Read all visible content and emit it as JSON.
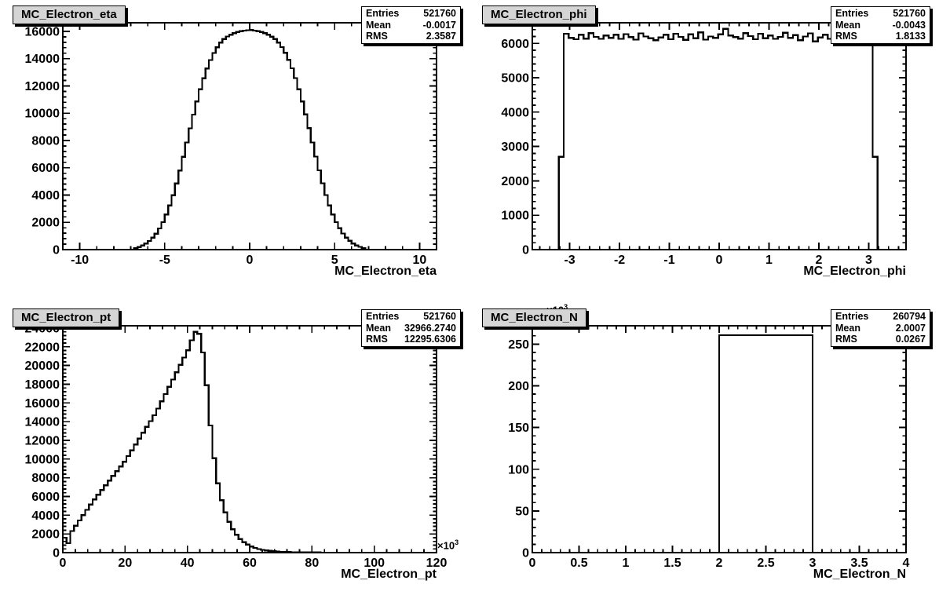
{
  "chart_data": [
    {
      "type": "histogram",
      "title": "MC_Electron_eta",
      "xlabel": "MC_Electron_eta",
      "x_range": [
        -11,
        11
      ],
      "y_range": [
        0,
        16630
      ],
      "x_ticks": [
        -10,
        -5,
        0,
        5,
        10
      ],
      "x_minor_step": 1,
      "y_ticks": [
        0,
        2000,
        4000,
        6000,
        8000,
        10000,
        12000,
        14000,
        16000
      ],
      "y_minor_step": 400,
      "stats": [
        {
          "label": "Entries",
          "value": "521760"
        },
        {
          "label": "Mean",
          "value": "-0.0017"
        },
        {
          "label": "RMS",
          "value": "2.3587"
        }
      ],
      "bins": {
        "x_first": -6.8,
        "bin_width": 0.2,
        "values": [
          110,
          190,
          300,
          440,
          630,
          870,
          1170,
          1550,
          2010,
          2570,
          3230,
          3990,
          4850,
          5800,
          6810,
          7850,
          8890,
          9900,
          10860,
          11750,
          12560,
          13280,
          13900,
          14420,
          14840,
          15170,
          15430,
          15620,
          15760,
          15870,
          15960,
          16010,
          16050,
          16080,
          16090,
          16060,
          16010,
          15950,
          15860,
          15750,
          15610,
          15430,
          15180,
          14850,
          14430,
          13910,
          13290,
          12570,
          11760,
          10870,
          9910,
          8900,
          7860,
          6820,
          5810,
          4860,
          4000,
          3240,
          2580,
          2020,
          1560,
          1180,
          880,
          640,
          450,
          310,
          200,
          120
        ]
      }
    },
    {
      "type": "histogram",
      "title": "MC_Electron_phi",
      "xlabel": "MC_Electron_phi",
      "x_range": [
        -3.75,
        3.75
      ],
      "y_range": [
        0,
        6600
      ],
      "x_ticks": [
        -3,
        -2,
        -1,
        0,
        1,
        2,
        3
      ],
      "x_minor_step": 0.2,
      "y_ticks": [
        0,
        1000,
        2000,
        3000,
        4000,
        5000,
        6000
      ],
      "y_minor_step": 200,
      "stats": [
        {
          "label": "Entries",
          "value": "521760"
        },
        {
          "label": "Mean",
          "value": "-0.0043"
        },
        {
          "label": "RMS",
          "value": "1.8133"
        }
      ],
      "bins": {
        "x_first": -3.22,
        "bin_width": 0.1,
        "values": [
          2700,
          6280,
          6160,
          6120,
          6250,
          6140,
          6300,
          6190,
          6130,
          6230,
          6160,
          6250,
          6130,
          6270,
          6180,
          6110,
          6290,
          6200,
          6150,
          6090,
          6170,
          6250,
          6120,
          6280,
          6190,
          6100,
          6260,
          6150,
          6320,
          6110,
          6200,
          6160,
          6260,
          6420,
          6230,
          6180,
          6140,
          6300,
          6210,
          6120,
          6280,
          6150,
          6230,
          6130,
          6190,
          6310,
          6160,
          6240,
          6090,
          6200,
          6290,
          6060,
          6170,
          6250,
          6130,
          6310,
          6180,
          6110,
          6260,
          6140,
          6220,
          6180,
          6100,
          2700
        ]
      }
    },
    {
      "type": "histogram",
      "title": "MC_Electron_pt",
      "xlabel": "MC_Electron_pt",
      "x_multiplier": {
        "base": "×10",
        "exp": "3"
      },
      "x_range": [
        0,
        120
      ],
      "y_range": [
        0,
        24250
      ],
      "x_ticks": [
        0,
        20,
        40,
        60,
        80,
        100,
        120
      ],
      "x_minor_step": 4,
      "y_ticks": [
        0,
        2000,
        4000,
        6000,
        8000,
        10000,
        12000,
        14000,
        16000,
        18000,
        20000,
        22000,
        24000
      ],
      "y_minor_step": 400,
      "stats": [
        {
          "label": "Entries",
          "value": "521760"
        },
        {
          "label": "Mean",
          "value": "32966.2740"
        },
        {
          "label": "RMS",
          "value": "12295.6306"
        }
      ],
      "bins": {
        "x_first": 0,
        "bin_width": 1.2,
        "values": [
          1600,
          1000,
          2310,
          2870,
          3440,
          4000,
          4570,
          5130,
          5680,
          6190,
          6690,
          7200,
          7700,
          8200,
          8710,
          9210,
          9720,
          10320,
          10940,
          11570,
          12190,
          12820,
          13440,
          14060,
          14690,
          15390,
          16170,
          16950,
          17730,
          18510,
          19290,
          20070,
          20850,
          21630,
          22700,
          23600,
          23400,
          21400,
          17900,
          13600,
          10100,
          7400,
          5600,
          4300,
          3300,
          2500,
          1900,
          1450,
          1100,
          850,
          650,
          500,
          380,
          300,
          230,
          180,
          140,
          110,
          90,
          70,
          55,
          45,
          35,
          28,
          22,
          18,
          14,
          11,
          9,
          7,
          6,
          5,
          4,
          3,
          3,
          2,
          2,
          2,
          1,
          1,
          1,
          1,
          1,
          0,
          0,
          0,
          0,
          0,
          0,
          0,
          0,
          0,
          0,
          0,
          0,
          0,
          0,
          0,
          0,
          0
        ]
      }
    },
    {
      "type": "histogram",
      "title": "MC_Electron_N",
      "xlabel": "MC_Electron_N",
      "y_multiplier": {
        "base": "×10",
        "exp": "3"
      },
      "x_range": [
        0,
        4
      ],
      "y_range": [
        0,
        272
      ],
      "x_ticks": [
        0,
        0.5,
        1,
        1.5,
        2,
        2.5,
        3,
        3.5,
        4
      ],
      "x_minor_step": 0.1,
      "y_ticks": [
        0,
        50,
        100,
        150,
        200,
        250
      ],
      "y_minor_step": 10,
      "stats": [
        {
          "label": "Entries",
          "value": "260794"
        },
        {
          "label": "Mean",
          "value": "2.0007"
        },
        {
          "label": "RMS",
          "value": "0.0267"
        }
      ],
      "bins": {
        "x_first": 2,
        "bin_width": 1,
        "values": [
          260.8
        ]
      }
    }
  ]
}
